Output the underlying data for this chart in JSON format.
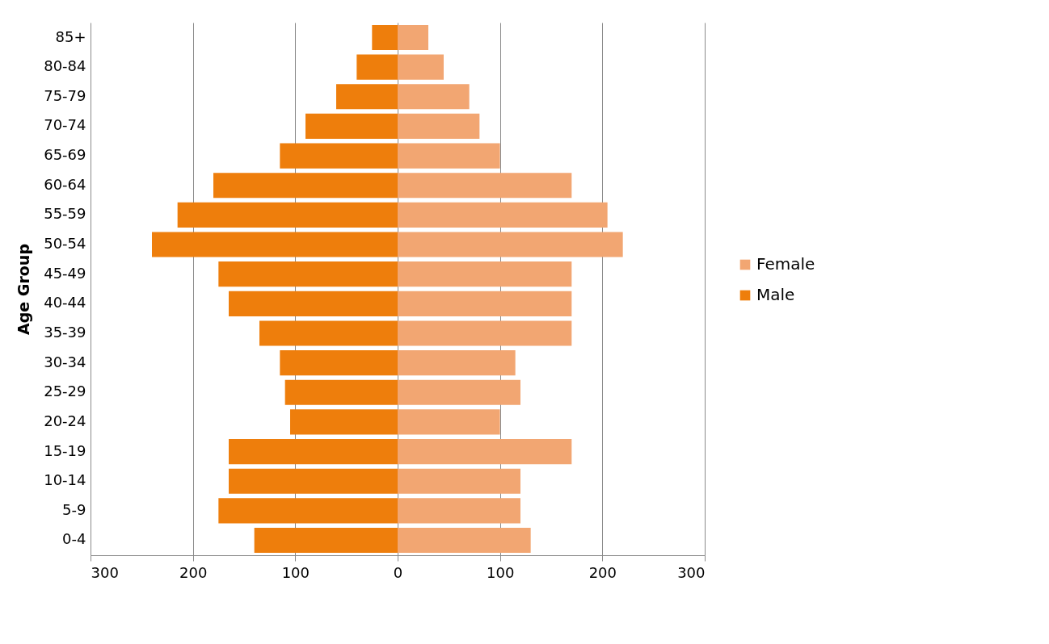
{
  "chart_data": {
    "type": "bar",
    "orientation": "horizontal",
    "ylabel": "Age Group",
    "categories": [
      "85+",
      "80-84",
      "75-79",
      "70-74",
      "65-69",
      "60-64",
      "55-59",
      "50-54",
      "45-49",
      "40-44",
      "35-39",
      "30-34",
      "25-29",
      "20-24",
      "15-19",
      "10-14",
      "5-9",
      "0-4"
    ],
    "series": [
      {
        "name": "Female",
        "color": "#f2a672",
        "values": [
          30,
          45,
          70,
          80,
          100,
          170,
          205,
          220,
          170,
          170,
          170,
          115,
          120,
          100,
          170,
          120,
          120,
          130
        ]
      },
      {
        "name": "Male",
        "color": "#ee7e0c",
        "values": [
          -25,
          -40,
          -60,
          -90,
          -115,
          -180,
          -215,
          -240,
          -175,
          -165,
          -135,
          -115,
          -110,
          -105,
          -165,
          -165,
          -175,
          -140
        ]
      }
    ],
    "xlim": [
      -300,
      300
    ],
    "xticks": [
      {
        "value": -300,
        "label": "300"
      },
      {
        "value": -200,
        "label": "200"
      },
      {
        "value": -100,
        "label": "100"
      },
      0,
      100,
      200,
      300
    ],
    "grid": "x",
    "legend": "right",
    "stacked": true
  }
}
